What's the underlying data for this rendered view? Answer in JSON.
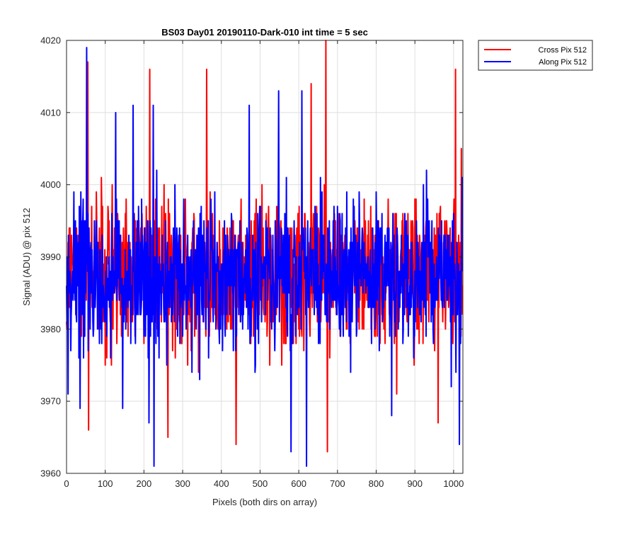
{
  "chart_data": {
    "type": "line",
    "title": "BS03 Day01 20190110-Dark-010 int time = 5 sec",
    "xlabel": "Pixels (both dirs on array)",
    "ylabel": "Signal (ADU) @ pix 512",
    "xlim": [
      0,
      1024
    ],
    "ylim": [
      3960,
      4020
    ],
    "xticks": [
      0,
      100,
      200,
      300,
      400,
      500,
      600,
      700,
      800,
      900,
      1000
    ],
    "yticks": [
      3960,
      3970,
      3980,
      3990,
      4000,
      4010,
      4020
    ],
    "grid": true,
    "legend_position": "outside top-right",
    "series": [
      {
        "name": "Cross Pix 512",
        "color": "#ff0000",
        "mean": 3987.5,
        "n_points": 1024,
        "extremes": [
          {
            "x": 55,
            "y": 4017
          },
          {
            "x": 57,
            "y": 3966
          },
          {
            "x": 215,
            "y": 4016
          },
          {
            "x": 262,
            "y": 3965
          },
          {
            "x": 362,
            "y": 4016
          },
          {
            "x": 438,
            "y": 3964
          },
          {
            "x": 632,
            "y": 4014
          },
          {
            "x": 670,
            "y": 4020
          },
          {
            "x": 674,
            "y": 3963
          },
          {
            "x": 960,
            "y": 3967
          },
          {
            "x": 1005,
            "y": 4016
          },
          {
            "x": 1020,
            "y": 4005
          }
        ]
      },
      {
        "name": "Along Pix 512",
        "color": "#0000ff",
        "mean": 3987.5,
        "n_points": 1024,
        "extremes": [
          {
            "x": 4,
            "y": 3971
          },
          {
            "x": 35,
            "y": 3969
          },
          {
            "x": 52,
            "y": 4019
          },
          {
            "x": 127,
            "y": 4010
          },
          {
            "x": 145,
            "y": 3969
          },
          {
            "x": 172,
            "y": 4011
          },
          {
            "x": 213,
            "y": 3967
          },
          {
            "x": 224,
            "y": 4011
          },
          {
            "x": 226,
            "y": 3961
          },
          {
            "x": 472,
            "y": 4011
          },
          {
            "x": 548,
            "y": 4013
          },
          {
            "x": 580,
            "y": 3963
          },
          {
            "x": 608,
            "y": 4013
          },
          {
            "x": 620,
            "y": 3961
          },
          {
            "x": 840,
            "y": 3968
          },
          {
            "x": 1015,
            "y": 3964
          }
        ]
      }
    ]
  }
}
